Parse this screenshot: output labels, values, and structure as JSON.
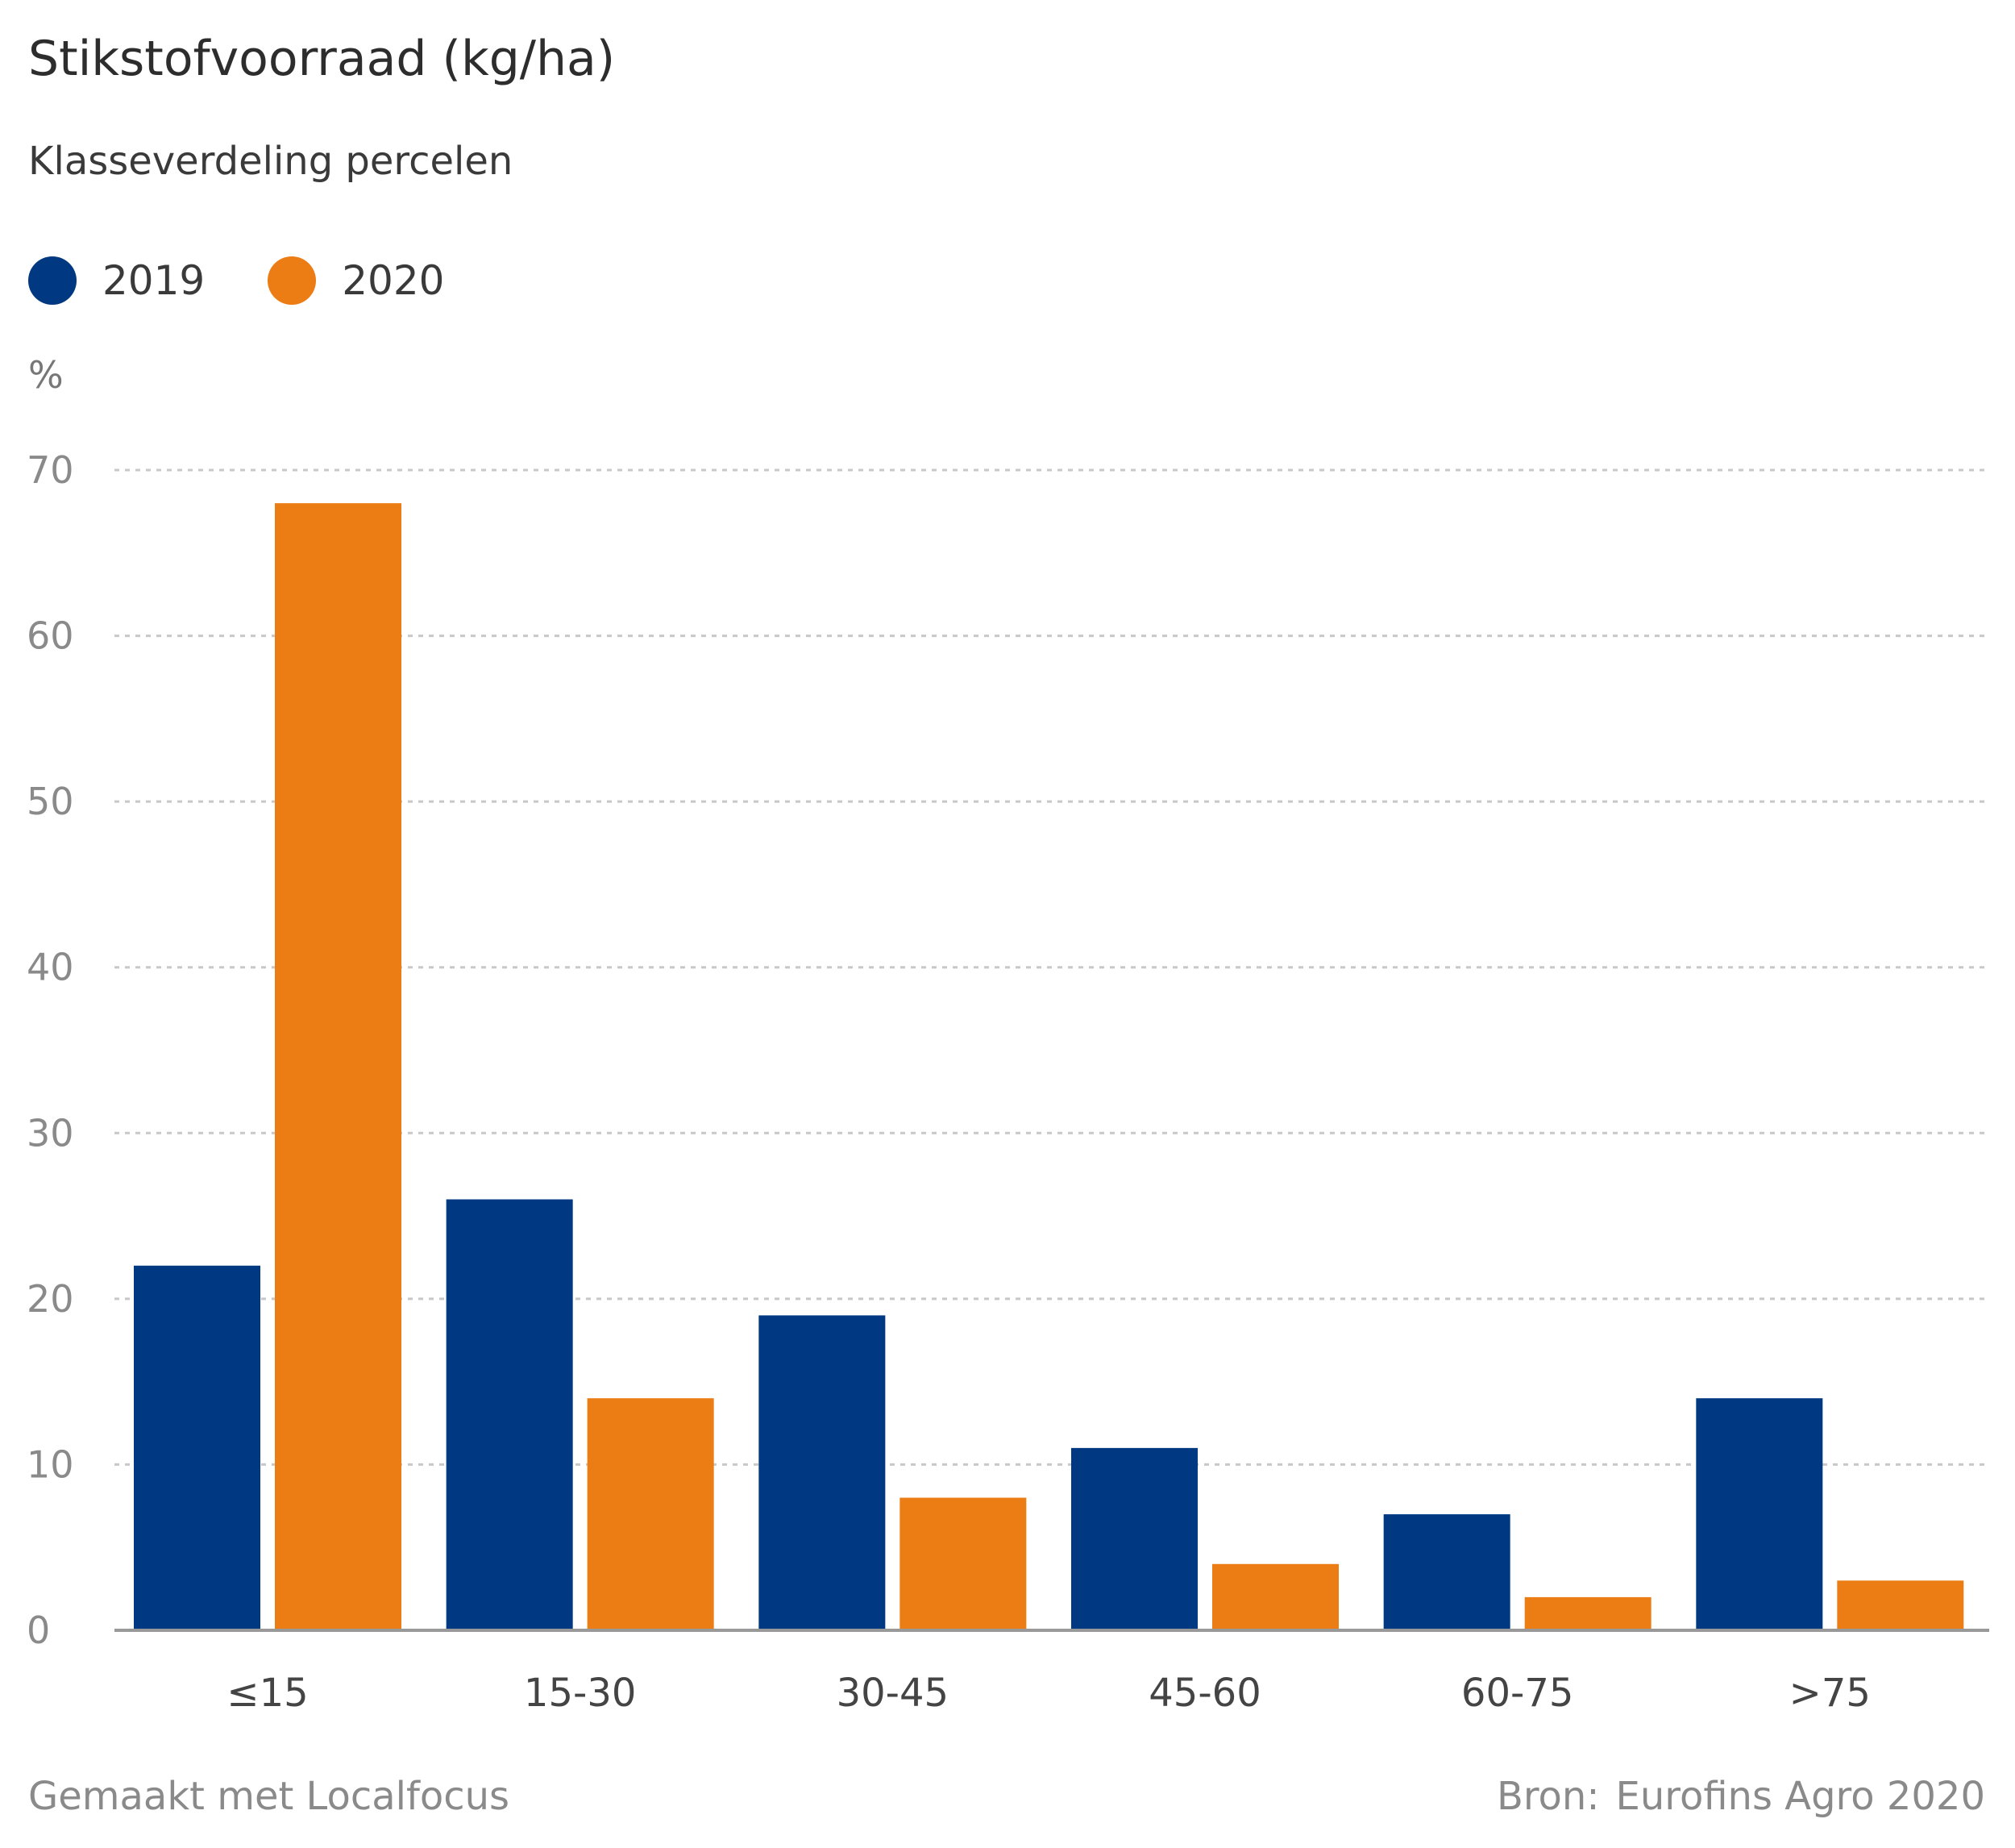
{
  "header": {
    "title": "Stikstofvoorraad (kg/ha)",
    "subtitle": "Klasseverdeling percelen"
  },
  "legend": [
    {
      "label": "2019",
      "color": "#003882"
    },
    {
      "label": "2020",
      "color": "#ec7c14"
    }
  ],
  "footer": {
    "made_with": "Gemaakt met Localfocus",
    "source_label": "Bron:",
    "source": "Eurofins Agro 2020"
  },
  "chart_data": {
    "type": "bar",
    "title": "Stikstofvoorraad (kg/ha)",
    "subtitle": "Klasseverdeling percelen",
    "ylabel": "%",
    "xlabel": "",
    "categories": [
      "≤15",
      "15-30",
      "30-45",
      "45-60",
      "60-75",
      ">75"
    ],
    "series": [
      {
        "name": "2019",
        "color": "#003882",
        "values": [
          22,
          26,
          19,
          11,
          7,
          14
        ]
      },
      {
        "name": "2020",
        "color": "#ec7c14",
        "values": [
          68,
          14,
          8,
          4,
          2,
          3
        ]
      }
    ],
    "ylim": [
      0,
      70
    ],
    "yticks": [
      0,
      10,
      20,
      30,
      40,
      50,
      60,
      70
    ],
    "grid": true,
    "legend_position": "top-left"
  }
}
